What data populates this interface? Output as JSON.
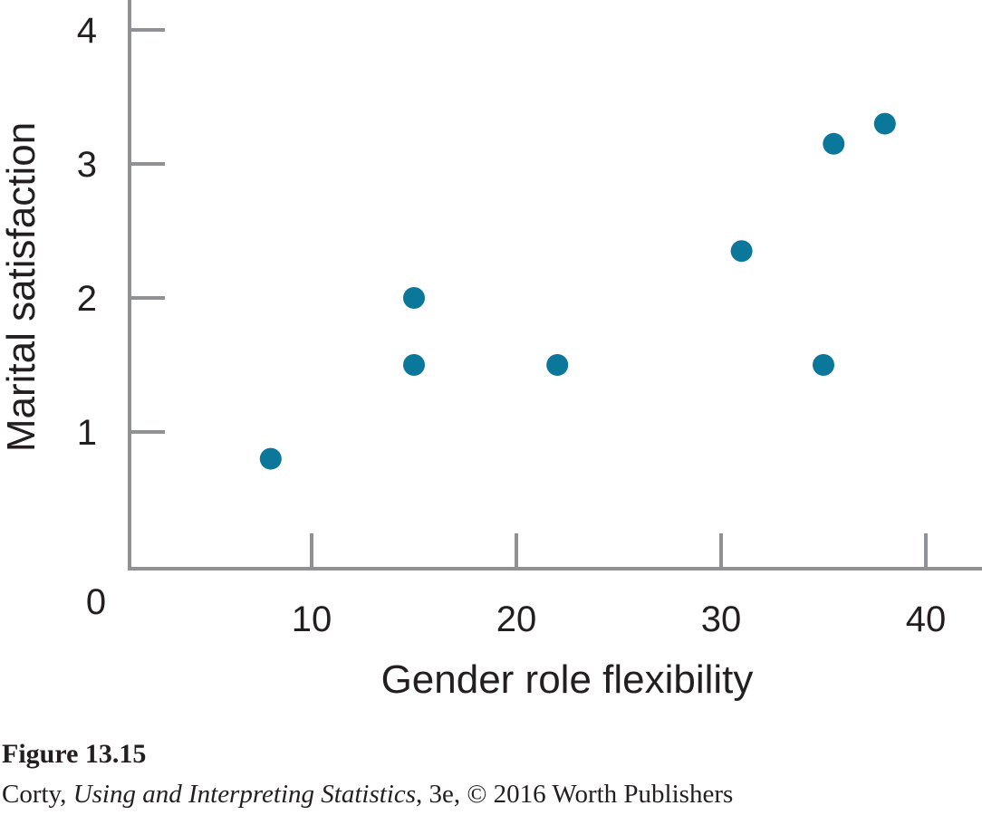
{
  "chart_data": {
    "type": "scatter",
    "xlabel": "Gender role flexibility",
    "ylabel": "Marital satisfaction",
    "origin_label": "0",
    "xlim": [
      0,
      41
    ],
    "ylim": [
      0,
      4.3
    ],
    "x_ticks": [
      10,
      20,
      30,
      40
    ],
    "y_ticks": [
      1,
      2,
      3,
      4
    ],
    "grid": false,
    "point_color": "#0b779a",
    "points": [
      {
        "x": 8,
        "y": 0.8
      },
      {
        "x": 15,
        "y": 2.0
      },
      {
        "x": 15,
        "y": 1.5
      },
      {
        "x": 22,
        "y": 1.5
      },
      {
        "x": 31,
        "y": 2.35
      },
      {
        "x": 35,
        "y": 1.5
      },
      {
        "x": 35.5,
        "y": 3.15
      },
      {
        "x": 38,
        "y": 3.3
      }
    ]
  },
  "caption": {
    "figure_label": "Figure 13.15",
    "author": "Corty, ",
    "book_title": "Using and Interpreting Statistics",
    "edition_credit": ", 3e, © 2016 Worth Publishers"
  }
}
